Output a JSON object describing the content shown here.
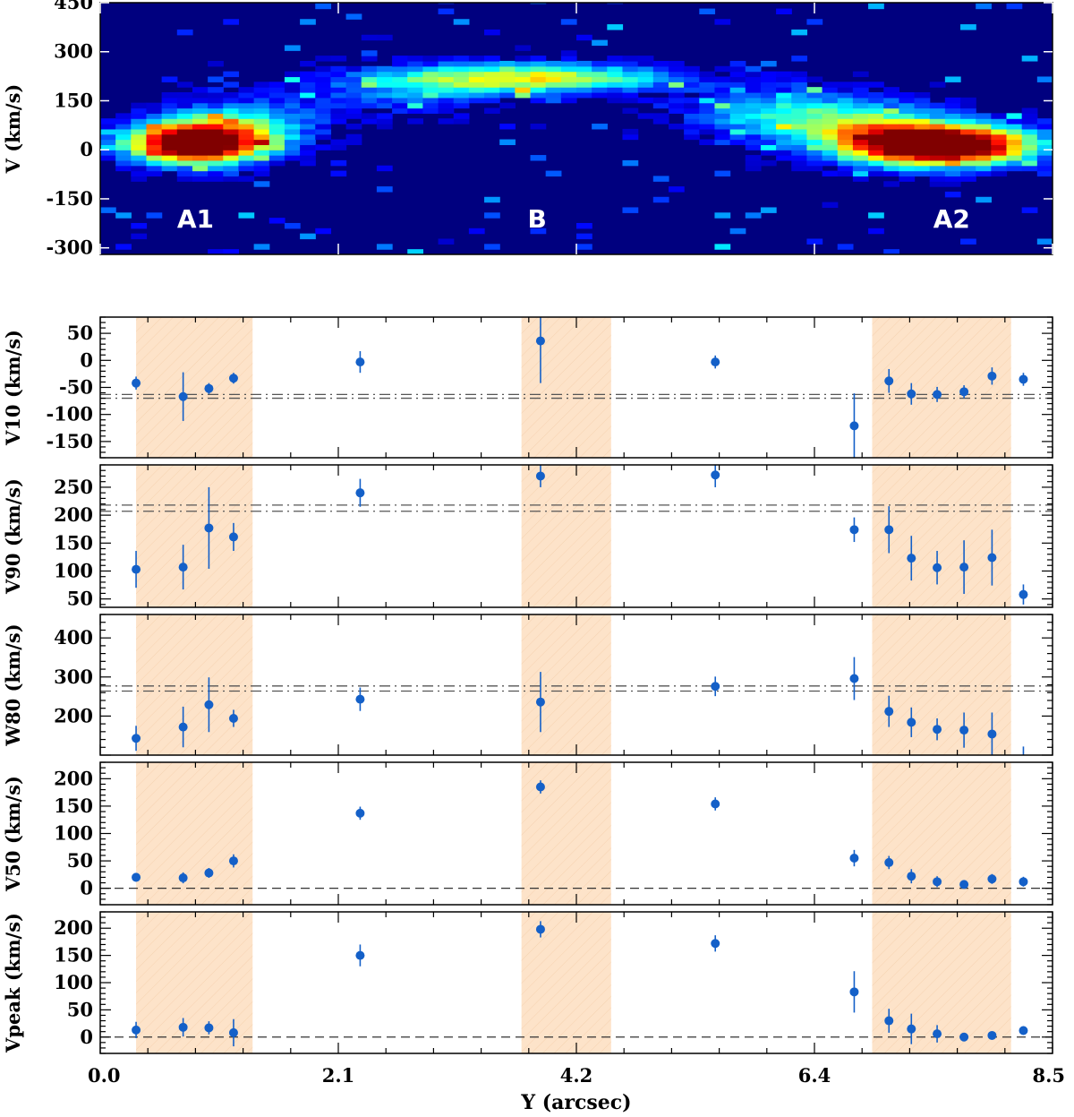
{
  "colors": {
    "point": "#1460c8",
    "shade": "#fde3c9",
    "map_background": "#00007f"
  },
  "chart_data": [
    {
      "type": "heatmap",
      "ylabel": "V (km/s)",
      "xlim": [
        0,
        8.5
      ],
      "ylim": [
        -320,
        450
      ],
      "yticks": [
        -300,
        -150,
        0,
        150,
        300,
        450
      ],
      "colormap": "jet",
      "regions": [
        {
          "label": "A1",
          "x": 0.85
        },
        {
          "label": "B",
          "x": 3.9
        },
        {
          "label": "A2",
          "x": 7.6
        }
      ]
    },
    {
      "type": "scatter",
      "ylabel": "V10 (km/s)",
      "ylim": [
        -180,
        80
      ],
      "yticks": [
        -150,
        -100,
        -50,
        0,
        50
      ],
      "ref_lines": [
        -63,
        -70
      ],
      "points": [
        {
          "x": 0.32,
          "y": -42,
          "err": 12
        },
        {
          "x": 0.74,
          "y": -67,
          "err": 45
        },
        {
          "x": 0.97,
          "y": -52,
          "err": 10
        },
        {
          "x": 1.19,
          "y": -33,
          "err": 10
        },
        {
          "x": 2.32,
          "y": -3,
          "err": 20
        },
        {
          "x": 3.93,
          "y": 36,
          "err": 78
        },
        {
          "x": 5.49,
          "y": -3,
          "err": 12
        },
        {
          "x": 6.73,
          "y": -121,
          "err": 60
        },
        {
          "x": 7.04,
          "y": -38,
          "err": 22
        },
        {
          "x": 7.24,
          "y": -62,
          "err": 20
        },
        {
          "x": 7.47,
          "y": -63,
          "err": 14
        },
        {
          "x": 7.71,
          "y": -58,
          "err": 12
        },
        {
          "x": 7.96,
          "y": -29,
          "err": 16
        },
        {
          "x": 8.24,
          "y": -35,
          "err": 12
        }
      ]
    },
    {
      "type": "scatter",
      "ylabel": "V90 (km/s)",
      "ylim": [
        35,
        290
      ],
      "yticks": [
        50,
        100,
        150,
        200,
        250
      ],
      "ref_lines": [
        218,
        207
      ],
      "points": [
        {
          "x": 0.32,
          "y": 103,
          "err": 33
        },
        {
          "x": 0.74,
          "y": 107,
          "err": 40
        },
        {
          "x": 0.97,
          "y": 177,
          "err": 73
        },
        {
          "x": 1.19,
          "y": 161,
          "err": 25
        },
        {
          "x": 2.32,
          "y": 240,
          "err": 25
        },
        {
          "x": 3.93,
          "y": 270,
          "err": 20
        },
        {
          "x": 5.49,
          "y": 272,
          "err": 22
        },
        {
          "x": 6.73,
          "y": 174,
          "err": 22
        },
        {
          "x": 7.04,
          "y": 174,
          "err": 42
        },
        {
          "x": 7.24,
          "y": 123,
          "err": 40
        },
        {
          "x": 7.47,
          "y": 106,
          "err": 30
        },
        {
          "x": 7.71,
          "y": 107,
          "err": 48
        },
        {
          "x": 7.96,
          "y": 124,
          "err": 50
        },
        {
          "x": 8.24,
          "y": 58,
          "err": 18
        }
      ]
    },
    {
      "type": "scatter",
      "ylabel": "W80 (km/s)",
      "ylim": [
        100,
        460
      ],
      "yticks": [
        200,
        300,
        400
      ],
      "ref_lines": [
        277,
        264
      ],
      "points": [
        {
          "x": 0.32,
          "y": 143,
          "err": 32
        },
        {
          "x": 0.74,
          "y": 172,
          "err": 52
        },
        {
          "x": 0.97,
          "y": 229,
          "err": 70
        },
        {
          "x": 1.19,
          "y": 194,
          "err": 22
        },
        {
          "x": 2.32,
          "y": 243,
          "err": 30
        },
        {
          "x": 3.93,
          "y": 236,
          "err": 77
        },
        {
          "x": 5.49,
          "y": 276,
          "err": 25
        },
        {
          "x": 6.73,
          "y": 296,
          "err": 55
        },
        {
          "x": 7.04,
          "y": 212,
          "err": 40
        },
        {
          "x": 7.24,
          "y": 184,
          "err": 38
        },
        {
          "x": 7.47,
          "y": 166,
          "err": 28
        },
        {
          "x": 7.71,
          "y": 164,
          "err": 45
        },
        {
          "x": 7.96,
          "y": 154,
          "err": 55
        },
        {
          "x": 8.24,
          "y": 92,
          "err": 30
        }
      ]
    },
    {
      "type": "scatter",
      "ylabel": "V50 (km/s)",
      "ylim": [
        -30,
        230
      ],
      "yticks": [
        0,
        50,
        100,
        150,
        200
      ],
      "ref_lines": [
        0
      ],
      "points": [
        {
          "x": 0.32,
          "y": 20,
          "err": 8
        },
        {
          "x": 0.74,
          "y": 19,
          "err": 10
        },
        {
          "x": 0.97,
          "y": 28,
          "err": 9
        },
        {
          "x": 1.19,
          "y": 50,
          "err": 12
        },
        {
          "x": 2.32,
          "y": 137,
          "err": 12
        },
        {
          "x": 3.93,
          "y": 185,
          "err": 12
        },
        {
          "x": 5.49,
          "y": 154,
          "err": 12
        },
        {
          "x": 6.73,
          "y": 55,
          "err": 15
        },
        {
          "x": 7.04,
          "y": 47,
          "err": 12
        },
        {
          "x": 7.24,
          "y": 22,
          "err": 13
        },
        {
          "x": 7.47,
          "y": 12,
          "err": 10
        },
        {
          "x": 7.71,
          "y": 7,
          "err": 7
        },
        {
          "x": 7.96,
          "y": 17,
          "err": 9
        },
        {
          "x": 8.24,
          "y": 12,
          "err": 9
        }
      ]
    },
    {
      "type": "scatter",
      "ylabel": "Vpeak (km/s)",
      "xlabel": "Y (arcsec)",
      "xticks": [
        "0.0",
        "2.1",
        "4.2",
        "6.4",
        "8.5"
      ],
      "ylim": [
        -30,
        230
      ],
      "yticks": [
        0,
        50,
        100,
        150,
        200
      ],
      "ref_lines": [
        0
      ],
      "points": [
        {
          "x": 0.32,
          "y": 13,
          "err": 15
        },
        {
          "x": 0.74,
          "y": 18,
          "err": 17
        },
        {
          "x": 0.97,
          "y": 17,
          "err": 12
        },
        {
          "x": 1.19,
          "y": 8,
          "err": 25
        },
        {
          "x": 2.32,
          "y": 150,
          "err": 20
        },
        {
          "x": 3.93,
          "y": 198,
          "err": 15
        },
        {
          "x": 5.49,
          "y": 172,
          "err": 15
        },
        {
          "x": 6.73,
          "y": 83,
          "err": 38
        },
        {
          "x": 7.04,
          "y": 30,
          "err": 22
        },
        {
          "x": 7.24,
          "y": 15,
          "err": 28
        },
        {
          "x": 7.47,
          "y": 6,
          "err": 16
        },
        {
          "x": 7.71,
          "y": 0,
          "err": 6
        },
        {
          "x": 7.96,
          "y": 3,
          "err": 6
        },
        {
          "x": 8.24,
          "y": 12,
          "err": 8
        }
      ]
    }
  ],
  "shaded_x_ranges": [
    [
      0.32,
      1.36
    ],
    [
      3.76,
      4.56
    ],
    [
      6.89,
      8.13
    ]
  ]
}
